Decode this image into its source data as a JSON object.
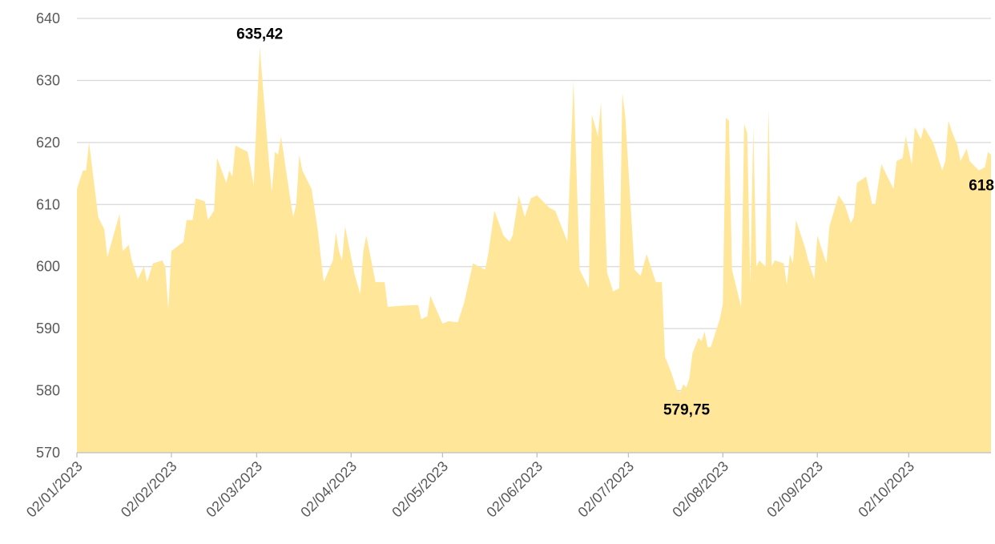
{
  "chart_data": {
    "type": "area",
    "color": "#ffe699",
    "grid": true,
    "x": [
      "02/01/2023",
      "04/01/2023",
      "05/01/2023",
      "06/01/2023",
      "09/01/2023",
      "11/01/2023",
      "12/01/2023",
      "16/01/2023",
      "17/01/2023",
      "19/01/2023",
      "20/01/2023",
      "22/01/2023",
      "24/01/2023",
      "25/01/2023",
      "27/01/2023",
      "30/01/2023",
      "31/01/2023",
      "01/02/2023",
      "02/02/2023",
      "06/02/2023",
      "07/02/2023",
      "09/02/2023",
      "10/02/2023",
      "13/02/2023",
      "14/02/2023",
      "16/02/2023",
      "17/02/2023",
      "20/02/2023",
      "21/02/2023",
      "22/02/2023",
      "23/02/2023",
      "27/02/2023",
      "28/02/2023",
      "01/03/2023",
      "03/03/2023",
      "06/03/2023",
      "07/03/2023",
      "08/03/2023",
      "09/03/2023",
      "10/03/2023",
      "13/03/2023",
      "14/03/2023",
      "15/03/2023",
      "16/03/2023",
      "17/03/2023",
      "20/03/2023",
      "22/03/2023",
      "24/03/2023",
      "27/03/2023",
      "28/03/2023",
      "29/03/2023",
      "30/03/2023",
      "31/03/2023",
      "03/04/2023",
      "05/04/2023",
      "06/04/2023",
      "07/04/2023",
      "10/04/2023",
      "13/04/2023",
      "14/04/2023",
      "19/04/2023",
      "24/04/2023",
      "25/04/2023",
      "27/04/2023",
      "28/04/2023",
      "30/04/2023",
      "02/05/2023",
      "04/05/2023",
      "07/05/2023",
      "09/05/2023",
      "12/05/2023",
      "14/05/2023",
      "16/05/2023",
      "17/05/2023",
      "19/05/2023",
      "22/05/2023",
      "24/05/2023",
      "25/05/2023",
      "27/05/2023",
      "29/05/2023",
      "31/05/2023",
      "02/06/2023",
      "05/06/2023",
      "06/06/2023",
      "08/06/2023",
      "12/06/2023",
      "14/06/2023",
      "16/06/2023",
      "19/06/2023",
      "20/06/2023",
      "22/06/2023",
      "23/06/2023",
      "25/06/2023",
      "27/06/2023",
      "29/06/2023",
      "30/06/2023",
      "01/07/2023",
      "04/07/2023",
      "06/07/2023",
      "08/07/2023",
      "11/07/2023",
      "13/07/2023",
      "14/07/2023",
      "16/07/2023",
      "18/07/2023",
      "19/07/2023",
      "20/07/2023",
      "21/07/2023",
      "22/07/2023",
      "23/07/2023",
      "25/07/2023",
      "26/07/2023",
      "27/07/2023",
      "28/07/2023",
      "29/07/2023",
      "31/07/2023",
      "01/08/2023",
      "02/08/2023",
      "03/08/2023",
      "04/08/2023",
      "05/08/2023",
      "08/08/2023",
      "09/08/2023",
      "10/08/2023",
      "11/08/2023",
      "12/08/2023",
      "13/08/2023",
      "14/08/2023",
      "16/08/2023",
      "17/08/2023",
      "18/08/2023",
      "19/08/2023",
      "22/08/2023",
      "23/08/2023",
      "24/08/2023",
      "25/08/2023",
      "26/08/2023",
      "29/08/2023",
      "30/08/2023",
      "01/09/2023",
      "02/09/2023",
      "05/09/2023",
      "06/09/2023",
      "09/09/2023",
      "11/09/2023",
      "13/09/2023",
      "14/09/2023",
      "15/09/2023",
      "18/09/2023",
      "20/09/2023",
      "21/09/2023",
      "23/09/2023",
      "27/09/2023",
      "28/09/2023",
      "30/09/2023",
      "01/10/2023",
      "03/10/2023",
      "04/10/2023",
      "06/10/2023",
      "07/10/2023",
      "10/10/2023",
      "13/10/2023",
      "14/10/2023",
      "15/10/2023",
      "16/10/2023",
      "18/10/2023",
      "19/10/2023",
      "21/10/2023",
      "22/10/2023",
      "25/10/2023",
      "27/10/2023",
      "28/10/2023",
      "29/10/2023"
    ],
    "values": [
      612.5,
      615.5,
      615.5,
      620,
      608,
      606,
      601.5,
      608.5,
      602.5,
      603.5,
      601,
      598,
      600,
      597.5,
      600.5,
      601,
      600,
      593,
      602.5,
      604,
      607.5,
      607.5,
      611,
      610.5,
      607.5,
      609,
      617.5,
      613.5,
      615.5,
      614.5,
      619.5,
      618.5,
      616,
      613,
      635.42,
      617,
      612,
      618.5,
      618,
      621,
      611,
      608,
      610,
      618,
      615.5,
      612.5,
      606,
      597.5,
      601,
      605.5,
      602.5,
      601,
      606.5,
      599,
      595.5,
      602.5,
      605,
      597.5,
      597.5,
      593.5,
      593.7,
      593.8,
      591.5,
      592,
      595.3,
      593,
      590.8,
      591.2,
      591,
      594,
      600.5,
      600,
      599.5,
      602,
      609,
      605,
      604,
      605,
      611.5,
      608,
      611,
      611.5,
      610,
      609.5,
      609,
      604,
      630,
      599.5,
      596.5,
      624.5,
      621,
      626.5,
      599,
      596,
      596.5,
      628,
      624,
      599.5,
      598.5,
      602,
      597.5,
      597.5,
      585.5,
      583,
      580,
      579.75,
      581,
      580.5,
      582,
      586,
      588.5,
      588,
      589.5,
      587,
      587,
      590,
      591.5,
      594,
      624,
      623.5,
      599.5,
      593.5,
      623,
      621.5,
      597,
      622.5,
      600,
      601,
      600,
      625.5,
      600,
      601,
      600.5,
      597,
      602,
      600.5,
      607.5,
      603,
      601,
      598,
      605,
      600.5,
      606.5,
      611.5,
      610,
      607,
      608,
      613.5,
      614.5,
      610,
      610,
      616.5,
      612.5,
      617,
      617.5,
      621,
      616.5,
      622.5,
      620.5,
      622.5,
      620,
      615.5,
      617,
      623.5,
      622,
      619.5,
      617,
      619,
      617,
      615.5,
      616,
      618.5,
      618
    ],
    "xlim": [
      "02/01/2023",
      "29/10/2023"
    ],
    "xticks": [
      "02/01/2023",
      "02/02/2023",
      "02/03/2023",
      "02/04/2023",
      "02/05/2023",
      "02/06/2023",
      "02/07/2023",
      "02/08/2023",
      "02/09/2023",
      "02/10/2023"
    ],
    "ylim": [
      570,
      640
    ],
    "yticks": [
      570,
      580,
      590,
      600,
      610,
      620,
      630,
      640
    ],
    "annotations": [
      {
        "x": "03/03/2023",
        "y": 635.42,
        "label": "635,42"
      },
      {
        "x": "19/07/2023",
        "y": 579.75,
        "label": "579,75"
      },
      {
        "x": "29/10/2023",
        "y": 618,
        "label": "618"
      }
    ]
  }
}
